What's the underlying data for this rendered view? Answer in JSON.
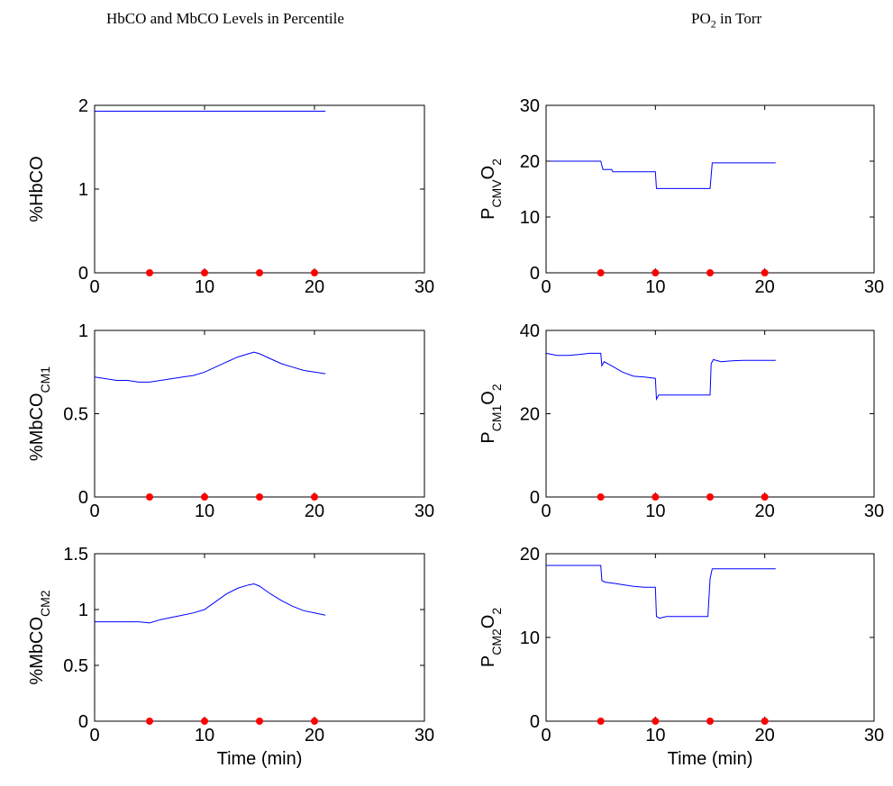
{
  "headings": {
    "left": "HbCO and MbCO Levels in Percentile",
    "right_main": "PO",
    "right_sub": "2",
    "right_tail": " in Torr"
  },
  "colors": {
    "line": "#0000ff",
    "marker": "#ff0000",
    "axes": "#000000"
  },
  "chart_data": [
    {
      "id": "hbco",
      "type": "line",
      "xlim": [
        0,
        30
      ],
      "ylim": [
        0,
        2
      ],
      "xticks": [
        "0",
        "10",
        "20",
        "30"
      ],
      "yticks": [
        "0",
        "1",
        "2"
      ],
      "ytick_values": [
        0,
        1,
        2
      ],
      "ylabel": {
        "main": "%HbCO",
        "sub": "",
        "tail": ""
      },
      "xlabel": "",
      "markers": [
        5,
        10,
        15,
        20
      ],
      "series": [
        {
          "x": [
            0,
            21
          ],
          "y": [
            1.93,
            1.93
          ]
        }
      ]
    },
    {
      "id": "pcmv",
      "type": "line",
      "xlim": [
        0,
        30
      ],
      "ylim": [
        0,
        30
      ],
      "xticks": [
        "0",
        "10",
        "20",
        "30"
      ],
      "yticks": [
        "0",
        "10",
        "20",
        "30"
      ],
      "ytick_values": [
        0,
        10,
        20,
        30
      ],
      "ylabel": {
        "main": "P",
        "sub": "CMV",
        "tail": "O",
        "sub2": "2"
      },
      "xlabel": "",
      "markers": [
        5,
        10,
        15,
        20
      ],
      "series": [
        {
          "x": [
            0,
            5,
            5.2,
            6,
            6.1,
            8,
            8.1,
            10,
            10.1,
            15,
            15.2,
            21
          ],
          "y": [
            20,
            20,
            18.5,
            18.5,
            18.1,
            18.1,
            18.1,
            18.1,
            15.1,
            15.1,
            19.7,
            19.7
          ]
        }
      ]
    },
    {
      "id": "mbco1",
      "type": "line",
      "xlim": [
        0,
        30
      ],
      "ylim": [
        0,
        1
      ],
      "xticks": [
        "0",
        "10",
        "20",
        "30"
      ],
      "yticks": [
        "0",
        "0.5",
        "1"
      ],
      "ytick_values": [
        0,
        0.5,
        1
      ],
      "ylabel": {
        "main": "%MbCO",
        "sub": "CM1",
        "tail": ""
      },
      "xlabel": "",
      "markers": [
        5,
        10,
        15,
        20
      ],
      "series": [
        {
          "x": [
            0,
            1,
            2,
            3,
            4,
            5,
            6,
            7,
            8,
            9,
            10,
            11,
            12,
            13,
            14,
            14.5,
            15,
            16,
            17,
            18,
            19,
            20,
            21
          ],
          "y": [
            0.72,
            0.71,
            0.7,
            0.7,
            0.69,
            0.69,
            0.7,
            0.71,
            0.72,
            0.73,
            0.75,
            0.78,
            0.81,
            0.84,
            0.86,
            0.87,
            0.86,
            0.83,
            0.8,
            0.78,
            0.76,
            0.75,
            0.74
          ]
        }
      ]
    },
    {
      "id": "pcm1",
      "type": "line",
      "xlim": [
        0,
        30
      ],
      "ylim": [
        0,
        40
      ],
      "xticks": [
        "0",
        "10",
        "20",
        "30"
      ],
      "yticks": [
        "0",
        "20",
        "40"
      ],
      "ytick_values": [
        0,
        20,
        40
      ],
      "ylabel": {
        "main": "P",
        "sub": "CM1",
        "tail": "O",
        "sub2": "2"
      },
      "xlabel": "",
      "markers": [
        5,
        10,
        15,
        20
      ],
      "series": [
        {
          "x": [
            0,
            1,
            2,
            3,
            4,
            5,
            5.1,
            5.3,
            6,
            7,
            8,
            9,
            10,
            10.1,
            10.3,
            11,
            15,
            15.1,
            15.3,
            16,
            17,
            18,
            21
          ],
          "y": [
            34.5,
            34,
            34,
            34.2,
            34.5,
            34.5,
            31.5,
            32.5,
            31.5,
            30,
            29,
            28.8,
            28.5,
            23.5,
            24.5,
            24.5,
            24.5,
            32,
            33,
            32.5,
            32.7,
            32.8,
            32.8
          ]
        }
      ]
    },
    {
      "id": "mbco2",
      "type": "line",
      "xlim": [
        0,
        30
      ],
      "ylim": [
        0,
        1.5
      ],
      "xticks": [
        "0",
        "10",
        "20",
        "30"
      ],
      "yticks": [
        "0",
        "0.5",
        "1",
        "1.5"
      ],
      "ytick_values": [
        0,
        0.5,
        1,
        1.5
      ],
      "ylabel": {
        "main": "%MbCO",
        "sub": "CM2",
        "tail": ""
      },
      "xlabel": "Time (min)",
      "markers": [
        5,
        10,
        15,
        20
      ],
      "series": [
        {
          "x": [
            0,
            1,
            2,
            3,
            4,
            5,
            6,
            7,
            8,
            9,
            10,
            11,
            12,
            13,
            14,
            14.5,
            15,
            16,
            17,
            18,
            19,
            20,
            21
          ],
          "y": [
            0.89,
            0.89,
            0.89,
            0.89,
            0.89,
            0.88,
            0.91,
            0.93,
            0.95,
            0.97,
            1.0,
            1.07,
            1.14,
            1.19,
            1.22,
            1.23,
            1.21,
            1.14,
            1.08,
            1.03,
            0.99,
            0.97,
            0.95
          ]
        }
      ]
    },
    {
      "id": "pcm2",
      "type": "line",
      "xlim": [
        0,
        30
      ],
      "ylim": [
        0,
        20
      ],
      "xticks": [
        "0",
        "10",
        "20",
        "30"
      ],
      "yticks": [
        "0",
        "10",
        "20"
      ],
      "ytick_values": [
        0,
        10,
        20
      ],
      "ylabel": {
        "main": "P",
        "sub": "CM2",
        "tail": "O",
        "sub2": "2"
      },
      "xlabel": "Time (min)",
      "markers": [
        5,
        10,
        15,
        20
      ],
      "series": [
        {
          "x": [
            0,
            5,
            5.1,
            5.4,
            6,
            7,
            8,
            9,
            10,
            10.1,
            10.4,
            11,
            14.8,
            15,
            15.2,
            21
          ],
          "y": [
            18.6,
            18.6,
            16.8,
            16.6,
            16.5,
            16.3,
            16.1,
            16.0,
            16.0,
            12.5,
            12.3,
            12.5,
            12.5,
            17.0,
            18.2,
            18.2
          ]
        }
      ]
    }
  ]
}
